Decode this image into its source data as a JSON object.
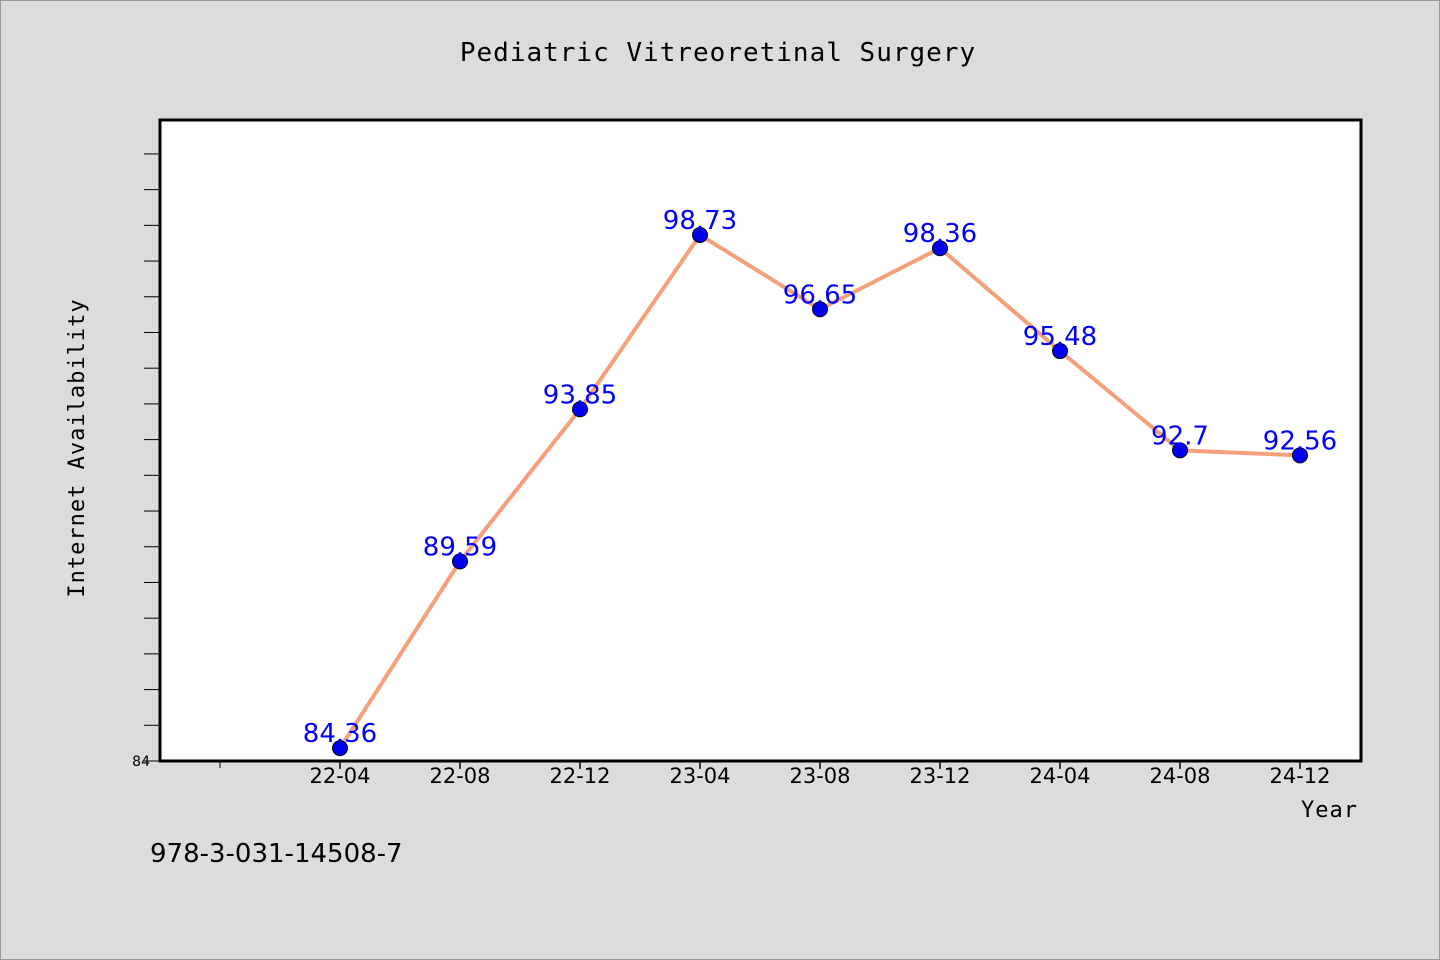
{
  "chart_data": {
    "type": "line",
    "title": "Pediatric Vitreoretinal Surgery",
    "xlabel": "Year",
    "ylabel": "Internet Availability",
    "categories": [
      "22-04",
      "22-08",
      "22-12",
      "23-04",
      "23-08",
      "23-12",
      "24-04",
      "24-08",
      "24-12"
    ],
    "series": [
      {
        "values": [
          84.36,
          89.59,
          93.85,
          98.73,
          96.65,
          98.36,
          95.48,
          92.7,
          92.56
        ],
        "labels": [
          "84.36",
          "89.59",
          "93.85",
          "98.73",
          "96.65",
          "98.36",
          "95.48",
          "92.7",
          "92.56"
        ]
      }
    ],
    "ylim": [
      84,
      101.95
    ],
    "y_ticks": [
      "84"
    ],
    "grid": false,
    "legend": "none",
    "colors": {
      "line": "#f4a07a",
      "marker": "#0000ee",
      "data_label": "#0000ff",
      "plot_background": "#ffffff",
      "page_background": "#dcdcdc"
    }
  },
  "footer": {
    "code": "978-3-031-14508-7"
  }
}
